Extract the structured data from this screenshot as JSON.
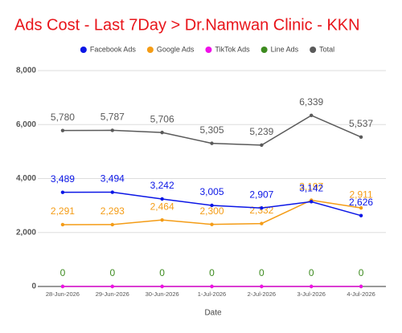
{
  "chart_data": {
    "type": "line",
    "title": "Ads Cost - Last 7Day > Dr.Namwan Clinic - KKN",
    "title_color": "#e8141a",
    "x_label": "Date",
    "categories": [
      "28-Jun-2026",
      "29-Jun-2026",
      "30-Jun-2026",
      "1-Jul-2026",
      "2-Jul-2026",
      "3-Jul-2026",
      "4-Jul-2026"
    ],
    "ylim": [
      0,
      8000
    ],
    "yticks": [
      0,
      {
        "value": 2000,
        "label": "2,000"
      },
      {
        "value": 4000,
        "label": "4,000"
      },
      {
        "value": 6000,
        "label": "6,000"
      },
      {
        "value": 8000,
        "label": "8,000"
      }
    ],
    "grid": true,
    "legend": "top",
    "series": [
      {
        "name": "Facebook Ads",
        "color": "#0b16e6",
        "show_labels": true,
        "values": [
          3489,
          3494,
          3242,
          3005,
          2907,
          3142,
          2626
        ],
        "value_labels": [
          "3,489",
          "3,494",
          "3,242",
          "3,005",
          "2,907",
          "3,142",
          "2,626"
        ]
      },
      {
        "name": "Google Ads",
        "color": "#f49c16",
        "show_labels": true,
        "values": [
          2291,
          2293,
          2464,
          2300,
          2332,
          3197,
          2911
        ],
        "value_labels": [
          "2,291",
          "2,293",
          "2,464",
          "2,300",
          "2,332",
          "3,197",
          "2,911"
        ]
      },
      {
        "name": "TikTok Ads",
        "color": "#f010e8",
        "show_labels": false,
        "values": [
          0,
          0,
          0,
          0,
          0,
          0,
          0
        ]
      },
      {
        "name": "Line Ads",
        "color": "#3d8b1f",
        "show_labels": true,
        "values": [
          0,
          0,
          0,
          0,
          0,
          0,
          0
        ]
      },
      {
        "name": "Total",
        "color": "#5a5a5a",
        "show_labels": true,
        "values": [
          5780,
          5787,
          5706,
          5305,
          5239,
          6339,
          5537
        ],
        "value_labels": [
          "5,780",
          "5,787",
          "5,706",
          "5,305",
          "5,239",
          "6,339",
          "5,537"
        ]
      }
    ]
  }
}
